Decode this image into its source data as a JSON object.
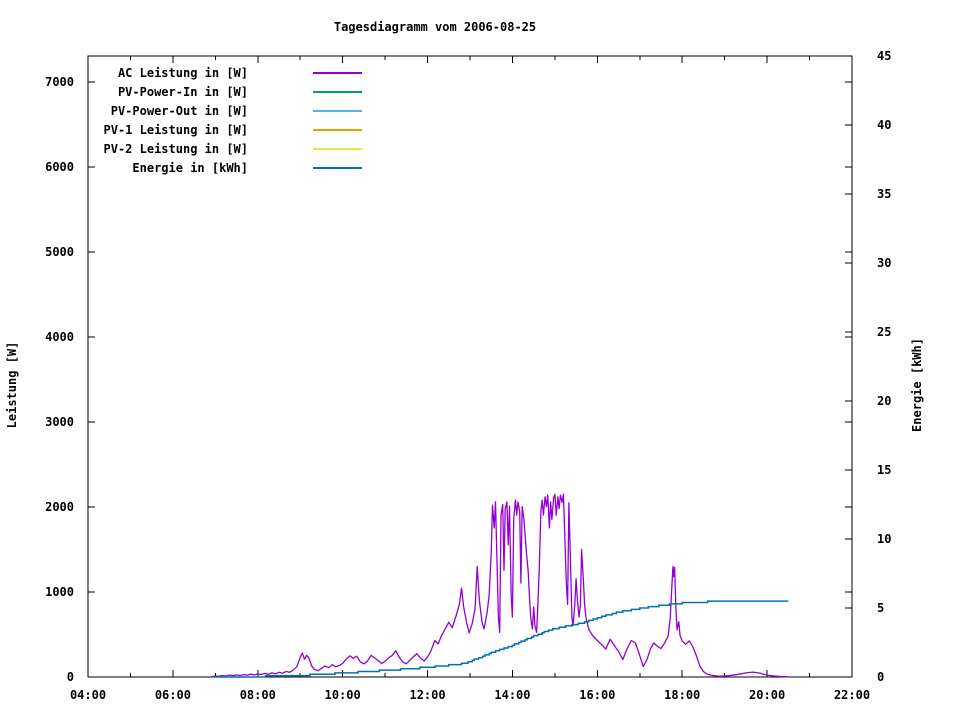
{
  "title": "Tagesdiagramm vom 2006-08-25",
  "colors": {
    "background": "#ffffff",
    "text": "#000000",
    "border": "#000000",
    "ac_power": "#9400d3",
    "pv_power_in": "#009e73",
    "pv_power_out": "#56b4e9",
    "pv1": "#e69f00",
    "pv2": "#f0e442",
    "energy": "#0072b2"
  },
  "chart_data": {
    "type": "line",
    "title": "Tagesdiagramm vom 2006-08-25",
    "grid": false,
    "legend_position": "top-left-inside",
    "x_axis": {
      "range": [
        4,
        22
      ],
      "major_ticks": [
        4,
        6,
        8,
        10,
        12,
        14,
        16,
        18,
        20,
        22
      ],
      "tick_labels": [
        "04:00",
        "06:00",
        "08:00",
        "10:00",
        "12:00",
        "14:00",
        "16:00",
        "18:00",
        "20:00",
        "22:00"
      ],
      "minor_ticks": [
        5,
        7,
        9,
        11,
        13,
        15,
        17,
        19,
        21
      ]
    },
    "y1_axis": {
      "label": "Leistung [W]",
      "range": [
        0,
        7306
      ],
      "ticks": [
        0,
        1000,
        2000,
        3000,
        4000,
        5000,
        6000,
        7000
      ]
    },
    "y2_axis": {
      "label": "Energie [kWh]",
      "range": [
        0,
        45
      ],
      "ticks": [
        0,
        5,
        10,
        15,
        20,
        25,
        30,
        35,
        40,
        45
      ]
    },
    "series": [
      {
        "name": "AC Leistung in [W]",
        "color": "#9400d3",
        "axis": "y1",
        "render": "line",
        "points": [
          [
            6.92,
            5
          ],
          [
            7.0,
            12
          ],
          [
            7.08,
            8
          ],
          [
            7.17,
            18
          ],
          [
            7.25,
            12
          ],
          [
            7.33,
            22
          ],
          [
            7.42,
            15
          ],
          [
            7.5,
            25
          ],
          [
            7.58,
            18
          ],
          [
            7.67,
            28
          ],
          [
            7.75,
            22
          ],
          [
            7.83,
            32
          ],
          [
            7.92,
            25
          ],
          [
            8.0,
            35
          ],
          [
            8.08,
            30
          ],
          [
            8.17,
            42
          ],
          [
            8.25,
            32
          ],
          [
            8.33,
            48
          ],
          [
            8.42,
            38
          ],
          [
            8.5,
            55
          ],
          [
            8.58,
            45
          ],
          [
            8.67,
            65
          ],
          [
            8.75,
            55
          ],
          [
            8.83,
            80
          ],
          [
            8.92,
            120
          ],
          [
            9.0,
            230
          ],
          [
            9.05,
            280
          ],
          [
            9.1,
            210
          ],
          [
            9.15,
            255
          ],
          [
            9.2,
            230
          ],
          [
            9.27,
            130
          ],
          [
            9.33,
            90
          ],
          [
            9.42,
            75
          ],
          [
            9.5,
            100
          ],
          [
            9.58,
            130
          ],
          [
            9.67,
            110
          ],
          [
            9.75,
            145
          ],
          [
            9.83,
            120
          ],
          [
            9.92,
            135
          ],
          [
            10.0,
            160
          ],
          [
            10.08,
            210
          ],
          [
            10.17,
            250
          ],
          [
            10.25,
            220
          ],
          [
            10.33,
            245
          ],
          [
            10.42,
            175
          ],
          [
            10.5,
            155
          ],
          [
            10.58,
            185
          ],
          [
            10.67,
            255
          ],
          [
            10.75,
            225
          ],
          [
            10.83,
            195
          ],
          [
            10.92,
            160
          ],
          [
            11.0,
            185
          ],
          [
            11.08,
            225
          ],
          [
            11.17,
            255
          ],
          [
            11.25,
            310
          ],
          [
            11.33,
            235
          ],
          [
            11.42,
            175
          ],
          [
            11.5,
            155
          ],
          [
            11.58,
            195
          ],
          [
            11.67,
            240
          ],
          [
            11.75,
            275
          ],
          [
            11.83,
            225
          ],
          [
            11.92,
            190
          ],
          [
            12.0,
            235
          ],
          [
            12.08,
            310
          ],
          [
            12.17,
            430
          ],
          [
            12.25,
            390
          ],
          [
            12.33,
            490
          ],
          [
            12.42,
            570
          ],
          [
            12.5,
            645
          ],
          [
            12.58,
            580
          ],
          [
            12.67,
            715
          ],
          [
            12.75,
            860
          ],
          [
            12.8,
            1045
          ],
          [
            12.85,
            830
          ],
          [
            12.92,
            640
          ],
          [
            12.98,
            520
          ],
          [
            13.05,
            625
          ],
          [
            13.12,
            805
          ],
          [
            13.17,
            1300
          ],
          [
            13.22,
            905
          ],
          [
            13.28,
            655
          ],
          [
            13.33,
            565
          ],
          [
            13.4,
            750
          ],
          [
            13.45,
            955
          ],
          [
            13.5,
            1455
          ],
          [
            13.53,
            2020
          ],
          [
            13.57,
            1755
          ],
          [
            13.6,
            2060
          ],
          [
            13.63,
            1500
          ],
          [
            13.67,
            705
          ],
          [
            13.7,
            525
          ],
          [
            13.73,
            1905
          ],
          [
            13.77,
            2030
          ],
          [
            13.8,
            1255
          ],
          [
            13.83,
            1980
          ],
          [
            13.87,
            2060
          ],
          [
            13.9,
            1555
          ],
          [
            13.93,
            2010
          ],
          [
            13.97,
            955
          ],
          [
            14.0,
            705
          ],
          [
            14.03,
            1855
          ],
          [
            14.07,
            2080
          ],
          [
            14.1,
            1905
          ],
          [
            14.13,
            2060
          ],
          [
            14.17,
            1950
          ],
          [
            14.2,
            1105
          ],
          [
            14.23,
            2005
          ],
          [
            14.27,
            1855
          ],
          [
            14.3,
            1655
          ],
          [
            14.33,
            1455
          ],
          [
            14.37,
            1255
          ],
          [
            14.4,
            955
          ],
          [
            14.43,
            705
          ],
          [
            14.47,
            565
          ],
          [
            14.5,
            825
          ],
          [
            14.53,
            605
          ],
          [
            14.57,
            525
          ],
          [
            14.6,
            855
          ],
          [
            14.63,
            1255
          ],
          [
            14.67,
            1955
          ],
          [
            14.7,
            2080
          ],
          [
            14.73,
            1905
          ],
          [
            14.77,
            2120
          ],
          [
            14.8,
            2005
          ],
          [
            14.83,
            2140
          ],
          [
            14.87,
            1755
          ],
          [
            14.9,
            2060
          ],
          [
            14.93,
            1855
          ],
          [
            14.97,
            2105
          ],
          [
            15.0,
            2150
          ],
          [
            15.03,
            1905
          ],
          [
            15.07,
            2120
          ],
          [
            15.1,
            1980
          ],
          [
            15.13,
            2140
          ],
          [
            15.17,
            2055
          ],
          [
            15.2,
            2150
          ],
          [
            15.23,
            1705
          ],
          [
            15.27,
            1105
          ],
          [
            15.3,
            855
          ],
          [
            15.33,
            2050
          ],
          [
            15.37,
            1305
          ],
          [
            15.4,
            705
          ],
          [
            15.43,
            605
          ],
          [
            15.47,
            855
          ],
          [
            15.5,
            1155
          ],
          [
            15.53,
            905
          ],
          [
            15.57,
            705
          ],
          [
            15.6,
            855
          ],
          [
            15.63,
            1500
          ],
          [
            15.67,
            1155
          ],
          [
            15.7,
            855
          ],
          [
            15.73,
            705
          ],
          [
            15.77,
            620
          ],
          [
            15.8,
            560
          ],
          [
            15.9,
            480
          ],
          [
            16.0,
            430
          ],
          [
            16.1,
            380
          ],
          [
            16.2,
            330
          ],
          [
            16.3,
            445
          ],
          [
            16.37,
            395
          ],
          [
            16.45,
            335
          ],
          [
            16.5,
            300
          ],
          [
            16.6,
            205
          ],
          [
            16.7,
            330
          ],
          [
            16.8,
            430
          ],
          [
            16.9,
            400
          ],
          [
            17.0,
            250
          ],
          [
            17.08,
            125
          ],
          [
            17.17,
            205
          ],
          [
            17.25,
            330
          ],
          [
            17.33,
            400
          ],
          [
            17.42,
            360
          ],
          [
            17.5,
            335
          ],
          [
            17.58,
            395
          ],
          [
            17.67,
            485
          ],
          [
            17.72,
            705
          ],
          [
            17.75,
            1005
          ],
          [
            17.78,
            1300
          ],
          [
            17.8,
            1180
          ],
          [
            17.82,
            1290
          ],
          [
            17.85,
            805
          ],
          [
            17.88,
            555
          ],
          [
            17.92,
            650
          ],
          [
            17.95,
            485
          ],
          [
            18.0,
            425
          ],
          [
            18.08,
            385
          ],
          [
            18.17,
            425
          ],
          [
            18.25,
            355
          ],
          [
            18.33,
            255
          ],
          [
            18.42,
            125
          ],
          [
            18.5,
            65
          ],
          [
            18.58,
            35
          ],
          [
            18.67,
            22
          ],
          [
            18.75,
            15
          ],
          [
            18.83,
            12
          ],
          [
            18.92,
            10
          ],
          [
            19.0,
            12
          ],
          [
            19.17,
            20
          ],
          [
            19.33,
            32
          ],
          [
            19.5,
            48
          ],
          [
            19.67,
            58
          ],
          [
            19.83,
            46
          ],
          [
            19.92,
            32
          ],
          [
            20.0,
            22
          ],
          [
            20.17,
            12
          ],
          [
            20.33,
            6
          ],
          [
            20.5,
            2
          ]
        ]
      },
      {
        "name": "PV-Power-In in [W]",
        "color": "#009e73",
        "axis": "y1",
        "render": "line",
        "points": []
      },
      {
        "name": "PV-Power-Out in [W]",
        "color": "#56b4e9",
        "axis": "y1",
        "render": "line",
        "points": []
      },
      {
        "name": "PV-1 Leistung in [W]",
        "color": "#e69f00",
        "axis": "y1",
        "render": "line",
        "points": []
      },
      {
        "name": "PV-2 Leistung in [W]",
        "color": "#f0e442",
        "axis": "y1",
        "render": "line",
        "points": []
      },
      {
        "name": "Energie in [kWh]",
        "color": "#0072b2",
        "axis": "y2",
        "render": "steps",
        "quantize": 0.1,
        "points": [
          [
            6.95,
            0
          ],
          [
            8.0,
            0.04
          ],
          [
            8.5,
            0.07
          ],
          [
            9.0,
            0.12
          ],
          [
            9.5,
            0.2
          ],
          [
            10.0,
            0.28
          ],
          [
            10.5,
            0.38
          ],
          [
            11.0,
            0.48
          ],
          [
            11.5,
            0.58
          ],
          [
            12.0,
            0.7
          ],
          [
            12.5,
            0.85
          ],
          [
            12.9,
            1.0
          ],
          [
            13.25,
            1.45
          ],
          [
            13.5,
            1.75
          ],
          [
            13.75,
            2.0
          ],
          [
            14.0,
            2.3
          ],
          [
            14.25,
            2.65
          ],
          [
            14.5,
            2.95
          ],
          [
            14.75,
            3.25
          ],
          [
            15.0,
            3.5
          ],
          [
            15.25,
            3.65
          ],
          [
            15.5,
            3.82
          ],
          [
            15.75,
            4.0
          ],
          [
            16.0,
            4.3
          ],
          [
            16.25,
            4.5
          ],
          [
            16.5,
            4.7
          ],
          [
            16.75,
            4.85
          ],
          [
            17.0,
            4.97
          ],
          [
            17.25,
            5.08
          ],
          [
            17.5,
            5.18
          ],
          [
            17.75,
            5.27
          ],
          [
            17.9,
            5.33
          ],
          [
            18.1,
            5.38
          ],
          [
            18.3,
            5.42
          ],
          [
            18.6,
            5.45
          ],
          [
            19.0,
            5.46
          ],
          [
            19.5,
            5.47
          ],
          [
            19.9,
            5.5
          ],
          [
            20.5,
            5.5
          ]
        ]
      }
    ]
  }
}
